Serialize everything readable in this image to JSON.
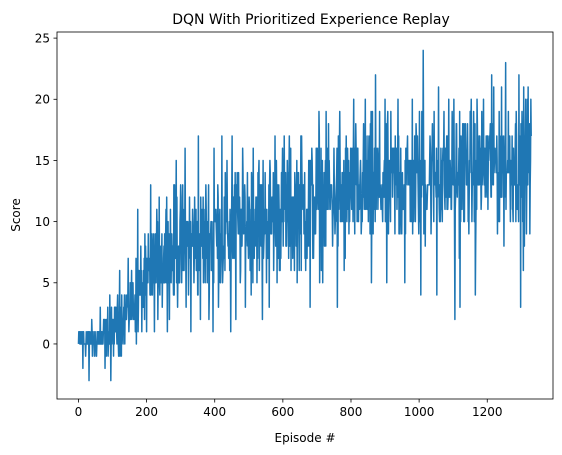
{
  "chart_data": {
    "type": "line",
    "title": "DQN With Prioritized Experience Replay",
    "xlabel": "Episode #",
    "ylabel": "Score",
    "xlim": [
      -63,
      1393
    ],
    "ylim": [
      -4.5,
      25.5
    ],
    "xticks": [
      0,
      200,
      400,
      600,
      800,
      1000,
      1200
    ],
    "yticks": [
      0,
      5,
      10,
      15,
      20,
      25
    ],
    "grid": false,
    "legend": "none",
    "series": [
      {
        "color": "#1f77b4",
        "episodes": 1330,
        "trend": [
          [
            0,
            0.3
          ],
          [
            50,
            0.3
          ],
          [
            100,
            1.0
          ],
          [
            150,
            3.0
          ],
          [
            200,
            5.0
          ],
          [
            250,
            7.0
          ],
          [
            300,
            8.0
          ],
          [
            400,
            9.0
          ],
          [
            500,
            10.0
          ],
          [
            600,
            11.0
          ],
          [
            700,
            11.5
          ],
          [
            800,
            12.5
          ],
          [
            900,
            13.0
          ],
          [
            1000,
            13.5
          ],
          [
            1100,
            14.0
          ],
          [
            1200,
            14.5
          ],
          [
            1330,
            15.0
          ]
        ],
        "spread": [
          [
            0,
            1.2
          ],
          [
            100,
            2.0
          ],
          [
            200,
            3.5
          ],
          [
            300,
            4.5
          ],
          [
            500,
            5.0
          ],
          [
            1330,
            5.0
          ]
        ],
        "peaks": [
          [
            1012,
            24
          ],
          [
            1254,
            23
          ],
          [
            872,
            22
          ],
          [
            1293,
            22
          ],
          [
            1320,
            21
          ],
          [
            1325,
            21
          ],
          [
            1057,
            21
          ],
          [
            1213,
            22
          ],
          [
            842,
            20
          ],
          [
            938,
            20
          ],
          [
            980,
            20
          ],
          [
            1102,
            20
          ],
          [
            352,
            17
          ],
          [
            421,
            17
          ],
          [
            451,
            17
          ],
          [
            513,
            16
          ],
          [
            577,
            17
          ],
          [
            604,
            17
          ],
          [
            655,
            17
          ],
          [
            706,
            19
          ],
          [
            734,
            18
          ],
          [
            767,
            19
          ],
          [
            808,
            20
          ],
          [
            287,
            15
          ],
          [
            313,
            16
          ],
          [
            398,
            16
          ],
          [
            212,
            13
          ],
          [
            174,
            11
          ],
          [
            237,
            12
          ],
          [
            259,
            12
          ],
          [
            121,
            6
          ],
          [
            92,
            4
          ],
          [
            64,
            3
          ]
        ],
        "troughs": [
          [
            13,
            -2
          ],
          [
            31,
            -3
          ],
          [
            78,
            -2
          ],
          [
            95,
            -3
          ],
          [
            118,
            -1
          ],
          [
            170,
            0
          ],
          [
            200,
            1
          ],
          [
            330,
            1
          ],
          [
            358,
            2
          ],
          [
            395,
            1
          ],
          [
            447,
            1
          ],
          [
            462,
            2
          ],
          [
            490,
            3
          ],
          [
            540,
            2
          ],
          [
            560,
            3
          ],
          [
            680,
            3
          ],
          [
            760,
            3
          ],
          [
            780,
            6
          ],
          [
            860,
            5
          ],
          [
            905,
            5
          ],
          [
            958,
            5
          ],
          [
            1005,
            4
          ],
          [
            1052,
            4
          ],
          [
            1105,
            2
          ],
          [
            1120,
            3
          ],
          [
            1165,
            4
          ],
          [
            1298,
            3
          ],
          [
            1306,
            6
          ],
          [
            1315,
            9
          ],
          [
            1325,
            9
          ]
        ],
        "last_value": 17
      }
    ]
  }
}
